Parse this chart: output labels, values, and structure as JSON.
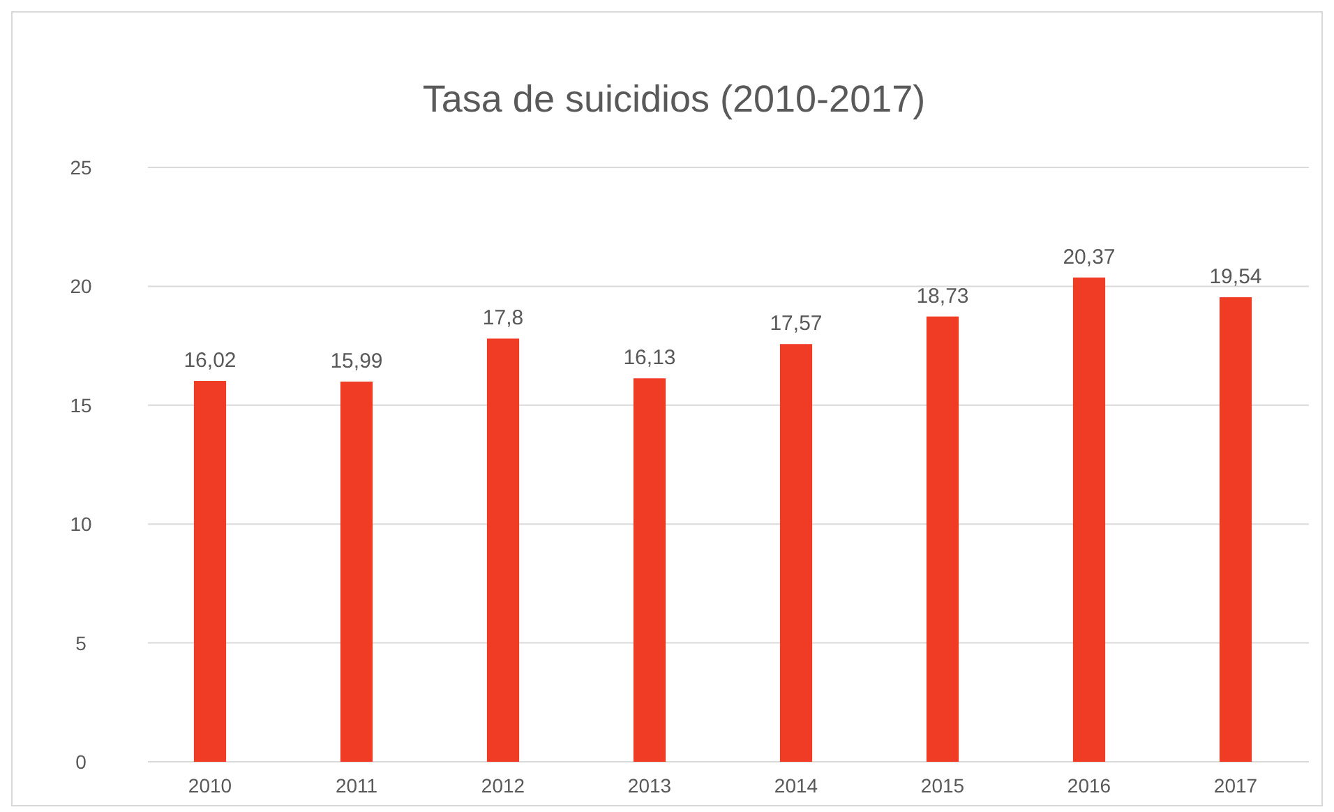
{
  "chart_data": {
    "type": "bar",
    "title": "Tasa de suicidios (2010-2017)",
    "categories": [
      "2010",
      "2011",
      "2012",
      "2013",
      "2014",
      "2015",
      "2016",
      "2017"
    ],
    "values": [
      16.02,
      15.99,
      17.8,
      16.13,
      17.57,
      18.73,
      20.37,
      19.54
    ],
    "value_labels": [
      "16,02",
      "15,99",
      "17,8",
      "16,13",
      "17,57",
      "18,73",
      "20,37",
      "19,54"
    ],
    "color": "#f03c24",
    "ylim": [
      0,
      25
    ],
    "yticks": [
      0,
      5,
      10,
      15,
      20,
      25
    ],
    "grid": "y"
  }
}
